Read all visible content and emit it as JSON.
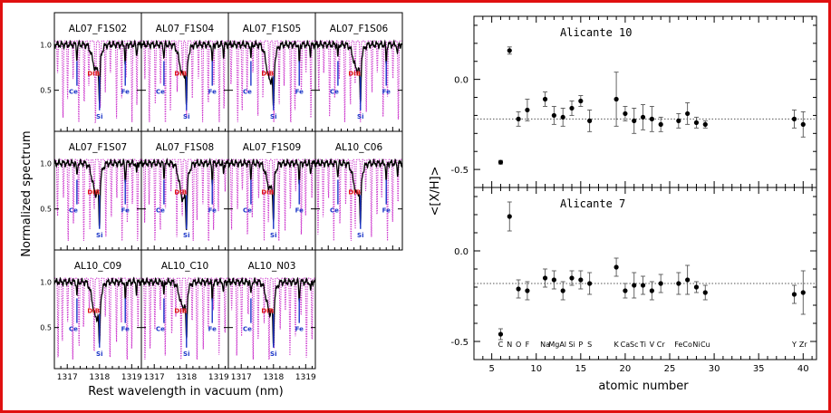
{
  "colors": {
    "frame": "#e01010",
    "spectrum": "#000000",
    "model": "#cc33cc",
    "line_marker": "#1a35c8",
    "dib_label": "#dd1111",
    "zero_line": "#555555"
  },
  "left_panel": {
    "ylabel": "Normalized spectrum",
    "xlabel": "Rest wavelength in vacuum (nm)",
    "ytick_labels": [
      "1.0",
      "0.5"
    ],
    "xtick_labels": [
      "1317",
      "1318",
      "1319"
    ],
    "line_labels": {
      "ce": "Ce",
      "si": "Si",
      "fe": "Fe",
      "dib": "DIB"
    },
    "titles": [
      "AL07_F1S02",
      "AL07_F1S04",
      "AL07_F1S05",
      "AL07_F1S06",
      "AL07_F1S07",
      "AL07_F1S08",
      "AL07_F1S09",
      "AL10_C06",
      "AL10_C09",
      "AL10_C10",
      "AL10_N03"
    ]
  },
  "right_panel": {
    "ylabel": "<[X/H]>",
    "xlabel": "atomic number",
    "xtick_labels": [
      "5",
      "10",
      "15",
      "20",
      "25",
      "30",
      "35",
      "40"
    ],
    "ytick_labels": [
      "0.0",
      "-0.5"
    ],
    "element_labels": [
      {
        "z": 6,
        "t": "C"
      },
      {
        "z": 7,
        "t": "N"
      },
      {
        "z": 8,
        "t": "O"
      },
      {
        "z": 9,
        "t": "F"
      },
      {
        "z": 11,
        "t": "Na"
      },
      {
        "z": 12,
        "t": "Mg"
      },
      {
        "z": 13,
        "t": "Al"
      },
      {
        "z": 14,
        "t": "Si"
      },
      {
        "z": 15,
        "t": "P"
      },
      {
        "z": 16,
        "t": "S"
      },
      {
        "z": 19,
        "t": "K"
      },
      {
        "z": 20,
        "t": "Ca"
      },
      {
        "z": 21,
        "t": "Sc"
      },
      {
        "z": 22,
        "t": "Ti"
      },
      {
        "z": 23,
        "t": "V"
      },
      {
        "z": 24,
        "t": "Cr"
      },
      {
        "z": 26,
        "t": "Fe"
      },
      {
        "z": 27,
        "t": "Co"
      },
      {
        "z": 28,
        "t": "Ni"
      },
      {
        "z": 29,
        "t": "Cu"
      },
      {
        "z": 39,
        "t": "Y"
      },
      {
        "z": 40,
        "t": "Zr"
      }
    ]
  },
  "chart_data": [
    {
      "type": "line",
      "panels": "11 small-multiple spectra (observed black line, model magenta dotted)",
      "x_range": [
        1316.6,
        1319.3
      ],
      "y_range": [
        0.05,
        1.35
      ],
      "line_positions_nm": {
        "Ce": 1317.3,
        "DIB": 1317.9,
        "Si": 1318.0,
        "Fe": 1318.8
      }
    },
    {
      "type": "scatter",
      "title": "Alicante 10",
      "xlim": [
        3,
        41.5
      ],
      "ylim": [
        -0.6,
        0.35
      ],
      "mean_line": -0.22,
      "points": [
        {
          "z": 6,
          "y": -0.46,
          "err": 0.01
        },
        {
          "z": 7,
          "y": 0.16,
          "err": 0.02
        },
        {
          "z": 8,
          "y": -0.22,
          "err": 0.04
        },
        {
          "z": 9,
          "y": -0.17,
          "err": 0.06
        },
        {
          "z": 11,
          "y": -0.11,
          "err": 0.04
        },
        {
          "z": 12,
          "y": -0.2,
          "err": 0.05
        },
        {
          "z": 13,
          "y": -0.21,
          "err": 0.05
        },
        {
          "z": 14,
          "y": -0.16,
          "err": 0.04
        },
        {
          "z": 15,
          "y": -0.12,
          "err": 0.03
        },
        {
          "z": 16,
          "y": -0.23,
          "err": 0.06
        },
        {
          "z": 19,
          "y": -0.11,
          "err": 0.15
        },
        {
          "z": 20,
          "y": -0.19,
          "err": 0.04
        },
        {
          "z": 21,
          "y": -0.23,
          "err": 0.07
        },
        {
          "z": 22,
          "y": -0.21,
          "err": 0.07
        },
        {
          "z": 23,
          "y": -0.22,
          "err": 0.07
        },
        {
          "z": 24,
          "y": -0.25,
          "err": 0.04
        },
        {
          "z": 26,
          "y": -0.23,
          "err": 0.04
        },
        {
          "z": 27,
          "y": -0.19,
          "err": 0.06
        },
        {
          "z": 28,
          "y": -0.24,
          "err": 0.03
        },
        {
          "z": 29,
          "y": -0.25,
          "err": 0.02
        },
        {
          "z": 39,
          "y": -0.22,
          "err": 0.05
        },
        {
          "z": 40,
          "y": -0.25,
          "err": 0.07
        }
      ]
    },
    {
      "type": "scatter",
      "title": "Alicante 7",
      "xlim": [
        3,
        41.5
      ],
      "ylim": [
        -0.6,
        0.35
      ],
      "mean_line": -0.18,
      "points": [
        {
          "z": 6,
          "y": -0.46,
          "err": 0.03
        },
        {
          "z": 7,
          "y": 0.19,
          "err": 0.08
        },
        {
          "z": 8,
          "y": -0.21,
          "err": 0.05
        },
        {
          "z": 9,
          "y": -0.22,
          "err": 0.05
        },
        {
          "z": 11,
          "y": -0.15,
          "err": 0.05
        },
        {
          "z": 12,
          "y": -0.16,
          "err": 0.05
        },
        {
          "z": 13,
          "y": -0.22,
          "err": 0.05
        },
        {
          "z": 14,
          "y": -0.15,
          "err": 0.04
        },
        {
          "z": 15,
          "y": -0.16,
          "err": 0.05
        },
        {
          "z": 16,
          "y": -0.18,
          "err": 0.06
        },
        {
          "z": 19,
          "y": -0.09,
          "err": 0.05
        },
        {
          "z": 20,
          "y": -0.22,
          "err": 0.04
        },
        {
          "z": 21,
          "y": -0.19,
          "err": 0.07
        },
        {
          "z": 22,
          "y": -0.19,
          "err": 0.05
        },
        {
          "z": 23,
          "y": -0.22,
          "err": 0.05
        },
        {
          "z": 24,
          "y": -0.18,
          "err": 0.05
        },
        {
          "z": 26,
          "y": -0.18,
          "err": 0.06
        },
        {
          "z": 27,
          "y": -0.16,
          "err": 0.08
        },
        {
          "z": 28,
          "y": -0.2,
          "err": 0.03
        },
        {
          "z": 29,
          "y": -0.23,
          "err": 0.04
        },
        {
          "z": 39,
          "y": -0.24,
          "err": 0.05
        },
        {
          "z": 40,
          "y": -0.23,
          "err": 0.12
        }
      ]
    }
  ]
}
